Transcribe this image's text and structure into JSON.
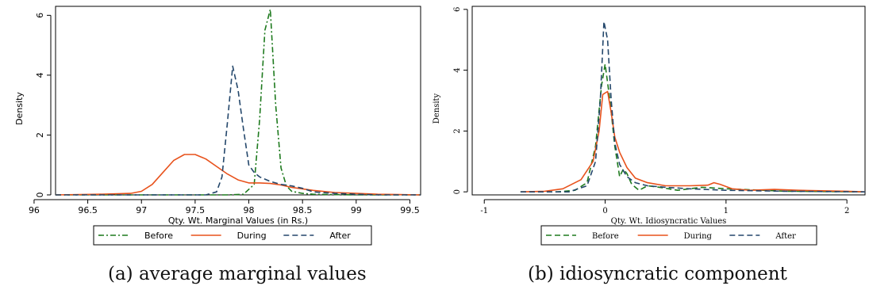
{
  "colors": {
    "before": "#1e7a1e",
    "during": "#e8521c",
    "after": "#24476b",
    "axis": "#000000"
  },
  "captions": {
    "a": "(a) average marginal values",
    "b": "(b) idiosyncratic component"
  },
  "chart_data": [
    {
      "type": "line",
      "title": "",
      "xlabel": "Qty. Wt. Marginal Values (in Rs.)",
      "ylabel": "Density",
      "xlim": [
        96.2,
        99.6
      ],
      "ylim": [
        0,
        6.3
      ],
      "xticks": [
        96,
        96.5,
        97,
        97.5,
        98,
        98.5,
        99,
        99.5
      ],
      "yticks": [
        0,
        2,
        4,
        6
      ],
      "grid": false,
      "legend_position": "bottom",
      "series": [
        {
          "name": "Before",
          "color": "#1e7a1e",
          "dash": "dashdot",
          "x": [
            96.2,
            97.8,
            97.95,
            98.05,
            98.1,
            98.15,
            98.2,
            98.25,
            98.3,
            98.35,
            98.4,
            98.5,
            98.6,
            98.8,
            99.0,
            99.2,
            99.4,
            99.6
          ],
          "y": [
            0,
            0,
            0.02,
            0.35,
            2.5,
            5.5,
            6.2,
            3.0,
            0.9,
            0.3,
            0.12,
            0.05,
            0.02,
            0.01,
            0,
            0,
            0,
            0
          ]
        },
        {
          "name": "During",
          "color": "#e8521c",
          "dash": "solid",
          "x": [
            96.2,
            96.6,
            96.9,
            97.0,
            97.1,
            97.2,
            97.3,
            97.4,
            97.5,
            97.6,
            97.7,
            97.8,
            97.9,
            98.0,
            98.1,
            98.2,
            98.3,
            98.4,
            98.5,
            98.6,
            98.8,
            99.0,
            99.2,
            99.4,
            99.6
          ],
          "y": [
            0,
            0.02,
            0.05,
            0.12,
            0.35,
            0.75,
            1.15,
            1.35,
            1.35,
            1.2,
            0.95,
            0.7,
            0.5,
            0.4,
            0.4,
            0.38,
            0.33,
            0.25,
            0.2,
            0.15,
            0.08,
            0.05,
            0.02,
            0.01,
            0
          ]
        },
        {
          "name": "After",
          "color": "#24476b",
          "dash": "dashed",
          "x": [
            96.2,
            97.6,
            97.7,
            97.75,
            97.8,
            97.85,
            97.9,
            97.95,
            98.0,
            98.05,
            98.1,
            98.2,
            98.3,
            98.4,
            98.5,
            98.6,
            98.8,
            99.0,
            99.2,
            99.6
          ],
          "y": [
            0,
            0,
            0.1,
            0.6,
            2.4,
            4.3,
            3.5,
            2.2,
            1.0,
            0.75,
            0.6,
            0.45,
            0.35,
            0.3,
            0.22,
            0.1,
            0.05,
            0.02,
            0,
            0
          ]
        }
      ]
    },
    {
      "type": "line",
      "title": "",
      "xlabel": "Qty. Wt. Idiosyncratic Values",
      "ylabel": "Density",
      "xlim": [
        -1.1,
        2.15
      ],
      "ylim": [
        -0.1,
        6.1
      ],
      "xticks": [
        -1,
        0,
        1,
        2
      ],
      "yticks": [
        0,
        2,
        4,
        6
      ],
      "grid": false,
      "legend_position": "bottom",
      "series": [
        {
          "name": "Before",
          "color": "#1e7a1e",
          "dash": "dashed",
          "x": [
            -0.7,
            -0.4,
            -0.25,
            -0.15,
            -0.08,
            -0.03,
            0.0,
            0.04,
            0.08,
            0.12,
            0.15,
            0.18,
            0.22,
            0.28,
            0.35,
            0.45,
            0.6,
            0.8,
            1.0,
            1.5,
            2.15
          ],
          "y": [
            0,
            0,
            0.05,
            0.3,
            1.5,
            3.5,
            4.2,
            3.0,
            1.5,
            0.5,
            0.75,
            0.6,
            0.25,
            0.05,
            0.2,
            0.15,
            0.05,
            0.15,
            0.1,
            0.02,
            0
          ]
        },
        {
          "name": "During",
          "color": "#e8521c",
          "dash": "solid",
          "x": [
            -0.7,
            -0.5,
            -0.35,
            -0.2,
            -0.1,
            -0.05,
            -0.02,
            0.02,
            0.05,
            0.08,
            0.12,
            0.18,
            0.25,
            0.35,
            0.5,
            0.7,
            0.85,
            0.9,
            0.95,
            1.05,
            1.2,
            1.4,
            1.6,
            2.0,
            2.15
          ],
          "y": [
            0,
            0.02,
            0.1,
            0.4,
            1.0,
            2.0,
            3.2,
            3.3,
            2.6,
            1.8,
            1.3,
            0.8,
            0.45,
            0.3,
            0.2,
            0.2,
            0.22,
            0.3,
            0.25,
            0.1,
            0.05,
            0.08,
            0.05,
            0.02,
            0
          ]
        },
        {
          "name": "After",
          "color": "#24476b",
          "dash": "dashed",
          "x": [
            -0.7,
            -0.3,
            -0.15,
            -0.08,
            -0.04,
            -0.01,
            0.02,
            0.05,
            0.08,
            0.12,
            0.18,
            0.25,
            0.35,
            0.5,
            0.7,
            1.0,
            1.5,
            2.15
          ],
          "y": [
            0,
            0,
            0.2,
            1.0,
            3.0,
            5.6,
            5.0,
            3.0,
            1.6,
            0.9,
            0.5,
            0.3,
            0.2,
            0.15,
            0.1,
            0.05,
            0.02,
            0
          ]
        }
      ]
    }
  ]
}
